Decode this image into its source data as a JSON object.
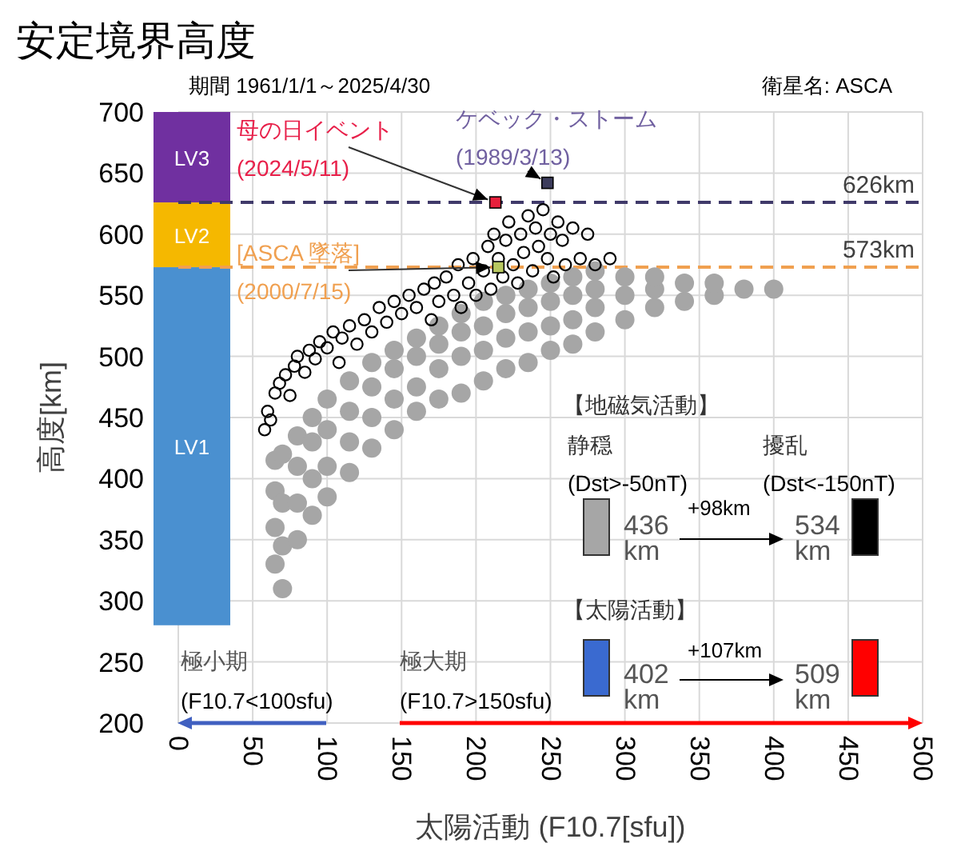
{
  "chart_data": {
    "type": "scatter",
    "title": "安定境界高度",
    "xlabel": "太陽活動 (F10.7[sfu])",
    "ylabel": "高度[km]",
    "xlim": [
      0,
      500
    ],
    "xticks": [
      0,
      50,
      100,
      150,
      200,
      250,
      300,
      350,
      400,
      450,
      500
    ],
    "ylim": [
      200,
      700
    ],
    "yticks": [
      200,
      250,
      300,
      350,
      400,
      450,
      500,
      550,
      600,
      650,
      700
    ],
    "grid": true,
    "series": [
      {
        "type": "scatter",
        "marker": "circle",
        "color": "#a6a6a6",
        "x": [
          65,
          65,
          65,
          65,
          70,
          70,
          70,
          70,
          80,
          80,
          80,
          80,
          90,
          90,
          90,
          90,
          100,
          100,
          100,
          100,
          115,
          115,
          115,
          115,
          130,
          130,
          130,
          130,
          145,
          145,
          145,
          145,
          160,
          160,
          160,
          160,
          175,
          175,
          175,
          175,
          190,
          190,
          190,
          190,
          205,
          205,
          205,
          205,
          220,
          220,
          220,
          220,
          235,
          235,
          235,
          235,
          250,
          250,
          250,
          250,
          265,
          265,
          265,
          265,
          280,
          280,
          280,
          280,
          300,
          300,
          300,
          320,
          320,
          320,
          340,
          340,
          360,
          360,
          380,
          400
        ],
        "values": [
          330,
          360,
          390,
          415,
          310,
          345,
          380,
          420,
          350,
          380,
          410,
          435,
          370,
          400,
          430,
          450,
          385,
          410,
          440,
          465,
          405,
          430,
          455,
          480,
          425,
          450,
          475,
          495,
          440,
          465,
          490,
          505,
          455,
          475,
          500,
          515,
          465,
          490,
          510,
          525,
          470,
          500,
          520,
          535,
          480,
          505,
          525,
          545,
          490,
          515,
          535,
          550,
          495,
          520,
          540,
          555,
          505,
          525,
          545,
          560,
          510,
          530,
          550,
          565,
          520,
          540,
          555,
          570,
          530,
          550,
          565,
          540,
          555,
          565,
          545,
          560,
          550,
          560,
          555,
          555
        ]
      },
      {
        "type": "scatter",
        "marker": "circle",
        "color": "#000000",
        "x": [
          58,
          60,
          62,
          65,
          68,
          72,
          75,
          78,
          80,
          85,
          88,
          92,
          95,
          100,
          104,
          108,
          110,
          115,
          120,
          125,
          130,
          135,
          140,
          145,
          150,
          155,
          160,
          165,
          170,
          172,
          175,
          180,
          185,
          188,
          190,
          195,
          198,
          200,
          205,
          208,
          210,
          212,
          215,
          218,
          220,
          222,
          225,
          228,
          230,
          232,
          235,
          238,
          240,
          242,
          245,
          248,
          250,
          252,
          255,
          258,
          260,
          265,
          270,
          275,
          280,
          290
        ],
        "values": [
          440,
          455,
          448,
          470,
          478,
          485,
          468,
          492,
          500,
          487,
          505,
          498,
          512,
          507,
          520,
          495,
          515,
          525,
          510,
          530,
          520,
          540,
          528,
          545,
          535,
          550,
          540,
          555,
          530,
          560,
          545,
          565,
          550,
          575,
          540,
          560,
          580,
          550,
          570,
          590,
          555,
          600,
          580,
          565,
          595,
          610,
          575,
          560,
          600,
          585,
          615,
          570,
          605,
          590,
          620,
          580,
          600,
          565,
          610,
          595,
          575,
          605,
          580,
          600,
          575,
          580
        ]
      },
      {
        "type": "scatter",
        "marker": "square",
        "x": [
          213,
          248,
          215
        ],
        "values": [
          626,
          642,
          573
        ],
        "colors": [
          "#e8203c",
          "#3c3c5c",
          "#b8c860"
        ]
      }
    ],
    "bands": [
      {
        "axis": "y",
        "from": 280,
        "to": 573,
        "label": "LV1",
        "color": "#4a90d0"
      },
      {
        "axis": "y",
        "from": 573,
        "to": 626,
        "label": "LV2",
        "color": "#f5b800"
      },
      {
        "axis": "y",
        "from": 626,
        "to": 700,
        "label": "LV3",
        "color": "#7030a0"
      }
    ],
    "ref_lines": [
      {
        "axis": "y",
        "value": 626,
        "label": "626km",
        "color": "#403a6a",
        "line_style": "dashed"
      },
      {
        "axis": "y",
        "value": 573,
        "label": "573km",
        "color": "#f0a050",
        "line_style": "dashed"
      }
    ],
    "annotations": [
      "期間 1961/1/1～2025/4/30",
      "衛星名: ASCA",
      {
        "text": "母の日イベント\n(2024/5/11)",
        "x": 213,
        "y": 626
      },
      {
        "text": "ケベック・ストーム\n(1989/3/13)",
        "x": 248,
        "y": 642
      },
      {
        "text": "[ASCA 墜落]\n(2000/7/15)",
        "x": 215,
        "y": 573
      },
      "【地磁気活動】",
      "静穏",
      "(Dst>-50nT)",
      "擾乱",
      "(Dst<-150nT)",
      "436\nkm",
      "+98km",
      "534\nkm",
      "【太陽活動】",
      "402\nkm",
      "+107km",
      "509\nkm",
      "極小期",
      "(F10.7<100sfu)",
      "極大期",
      "(F10.7>150sfu)"
    ]
  }
}
